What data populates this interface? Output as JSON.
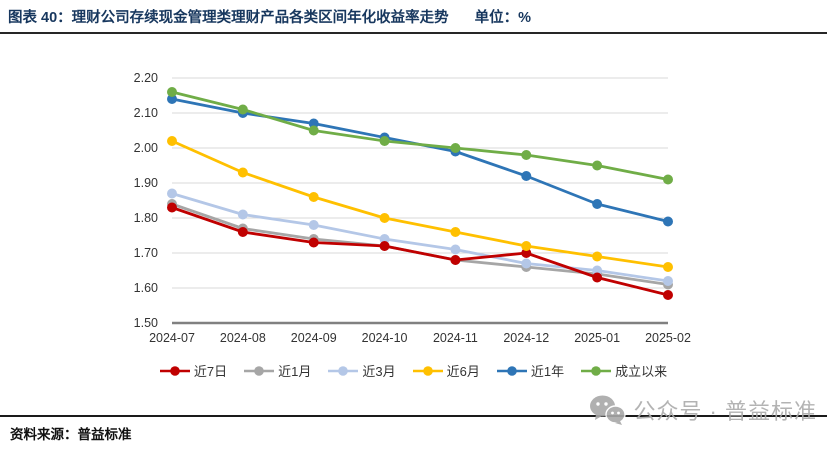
{
  "title": {
    "text": "图表 40：理财公司存续现金管理类理财产品各类区间年化收益率走势",
    "unit": "单位：%"
  },
  "source": "资料来源：普益标准",
  "watermark": {
    "icon": "wechat-icon",
    "text": "公众号 · 普益标准"
  },
  "colors": {
    "title": "#17375E",
    "gridline": "#D9D9D9",
    "axis_line": "#808080",
    "tick_label": "#333333",
    "watermark": "#ABABAB"
  },
  "chart_data": {
    "type": "line",
    "x": [
      "2024-07",
      "2024-08",
      "2024-09",
      "2024-10",
      "2024-11",
      "2024-12",
      "2025-01",
      "2025-02"
    ],
    "series": [
      {
        "name": "近7日",
        "color": "#C00000",
        "values": [
          1.83,
          1.76,
          1.73,
          1.72,
          1.68,
          1.7,
          1.63,
          1.58
        ]
      },
      {
        "name": "近1月",
        "color": "#A6A6A6",
        "values": [
          1.84,
          1.77,
          1.74,
          1.72,
          1.68,
          1.66,
          1.64,
          1.61
        ]
      },
      {
        "name": "近3月",
        "color": "#B4C7E7",
        "values": [
          1.87,
          1.81,
          1.78,
          1.74,
          1.71,
          1.67,
          1.65,
          1.62
        ]
      },
      {
        "name": "近6月",
        "color": "#FFC000",
        "values": [
          2.02,
          1.93,
          1.86,
          1.8,
          1.76,
          1.72,
          1.69,
          1.66
        ]
      },
      {
        "name": "近1年",
        "color": "#2E75B6",
        "values": [
          2.14,
          2.1,
          2.07,
          2.03,
          1.99,
          1.92,
          1.84,
          1.79
        ]
      },
      {
        "name": "成立以来",
        "color": "#70AD47",
        "values": [
          2.16,
          2.11,
          2.05,
          2.02,
          2.0,
          1.98,
          1.95,
          1.91
        ]
      }
    ],
    "ylim": [
      1.5,
      2.2
    ],
    "ytick_step": 0.1,
    "grid": true,
    "legend_position": "bottom"
  }
}
